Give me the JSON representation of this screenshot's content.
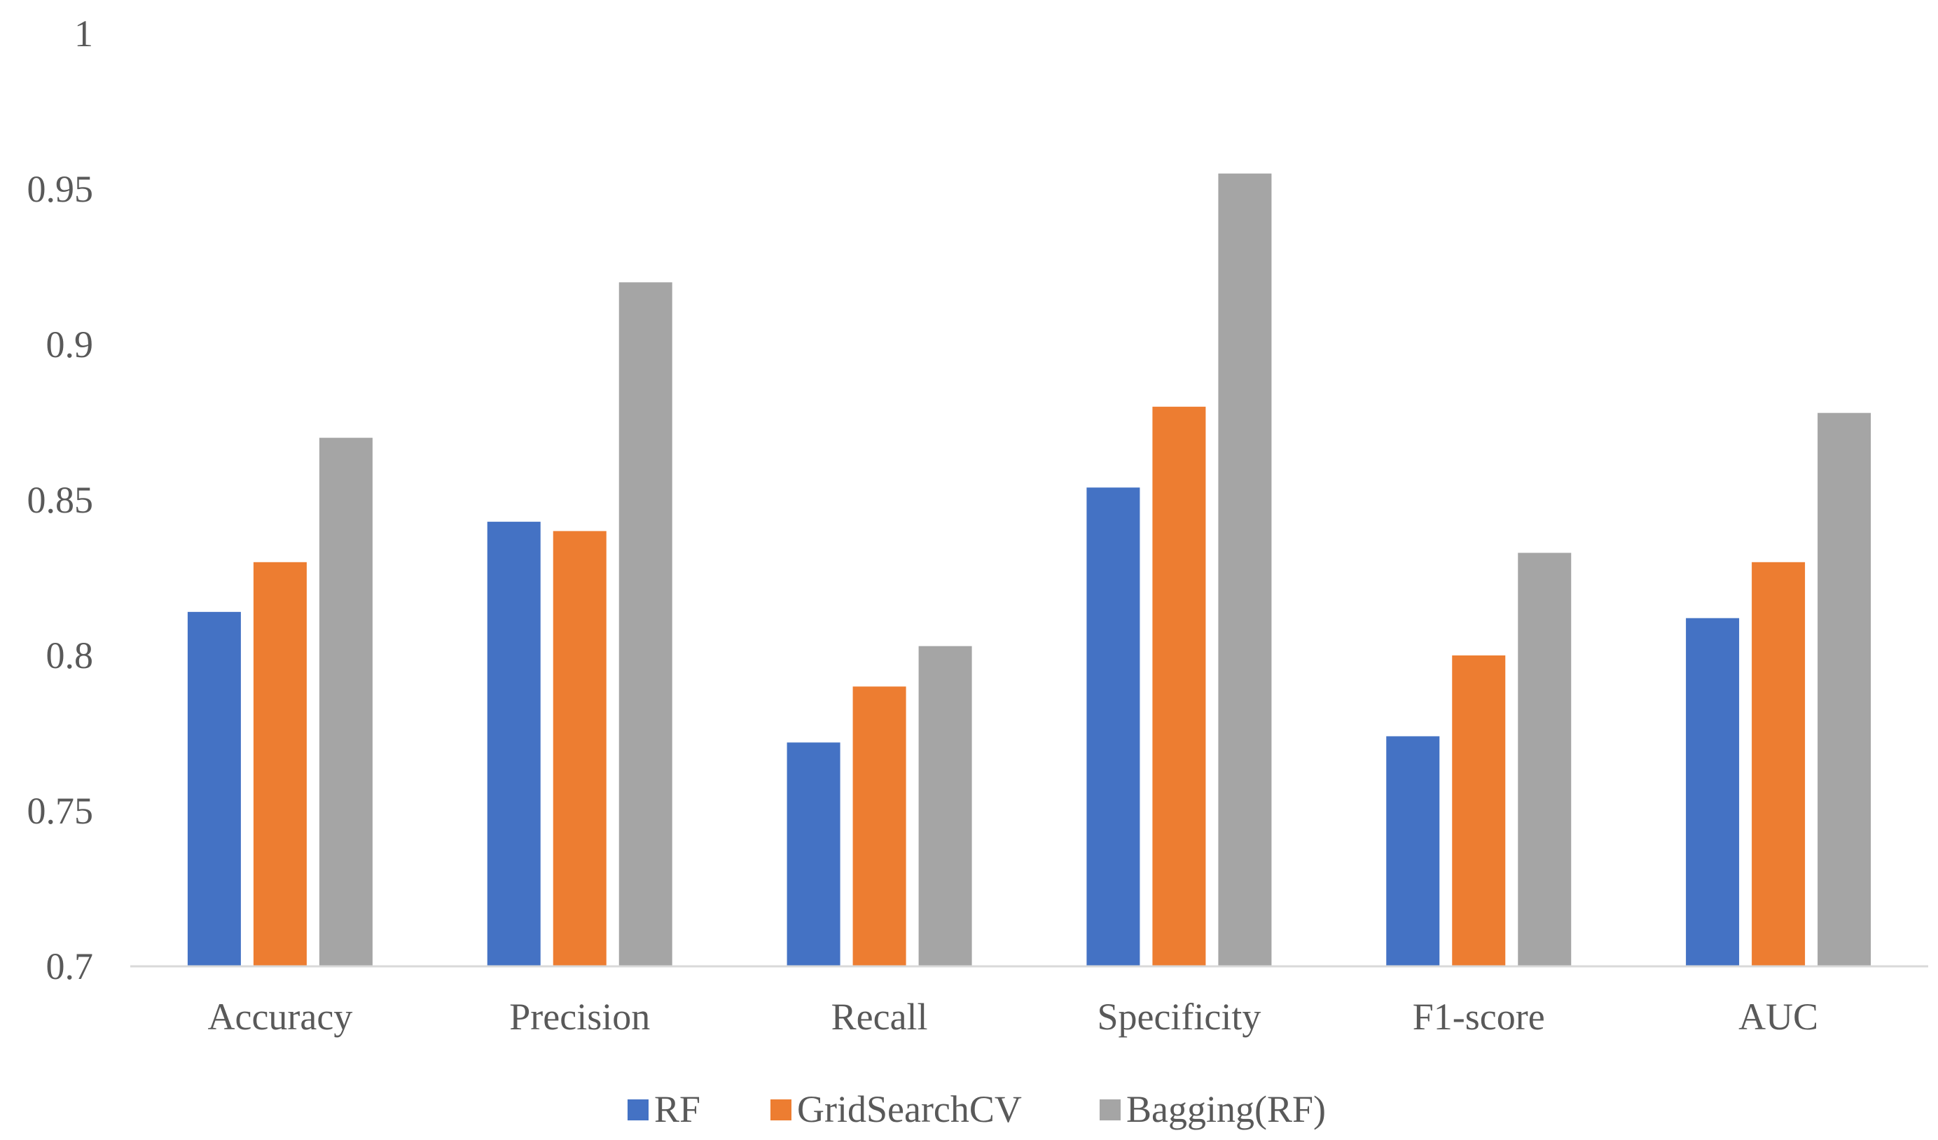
{
  "chart_data": {
    "type": "bar",
    "title": "",
    "xlabel": "",
    "ylabel": "",
    "categories": [
      "Accuracy",
      "Precision",
      "Recall",
      "Specificity",
      "F1-score",
      "AUC"
    ],
    "series": [
      {
        "name": "RF",
        "color": "#4472C4",
        "values": [
          0.814,
          0.843,
          0.772,
          0.854,
          0.774,
          0.812
        ]
      },
      {
        "name": "GridSearchCV",
        "color": "#ED7D31",
        "values": [
          0.83,
          0.84,
          0.79,
          0.88,
          0.8,
          0.83
        ]
      },
      {
        "name": "Bagging(RF)",
        "color": "#A5A5A5",
        "values": [
          0.87,
          0.92,
          0.803,
          0.955,
          0.833,
          0.878
        ]
      }
    ],
    "ylim": [
      0.7,
      1
    ],
    "yticks": [
      "0.7",
      "0.75",
      "0.8",
      "0.85",
      "0.9",
      "0.95",
      "1"
    ],
    "grid": false,
    "legend": "bottom"
  }
}
